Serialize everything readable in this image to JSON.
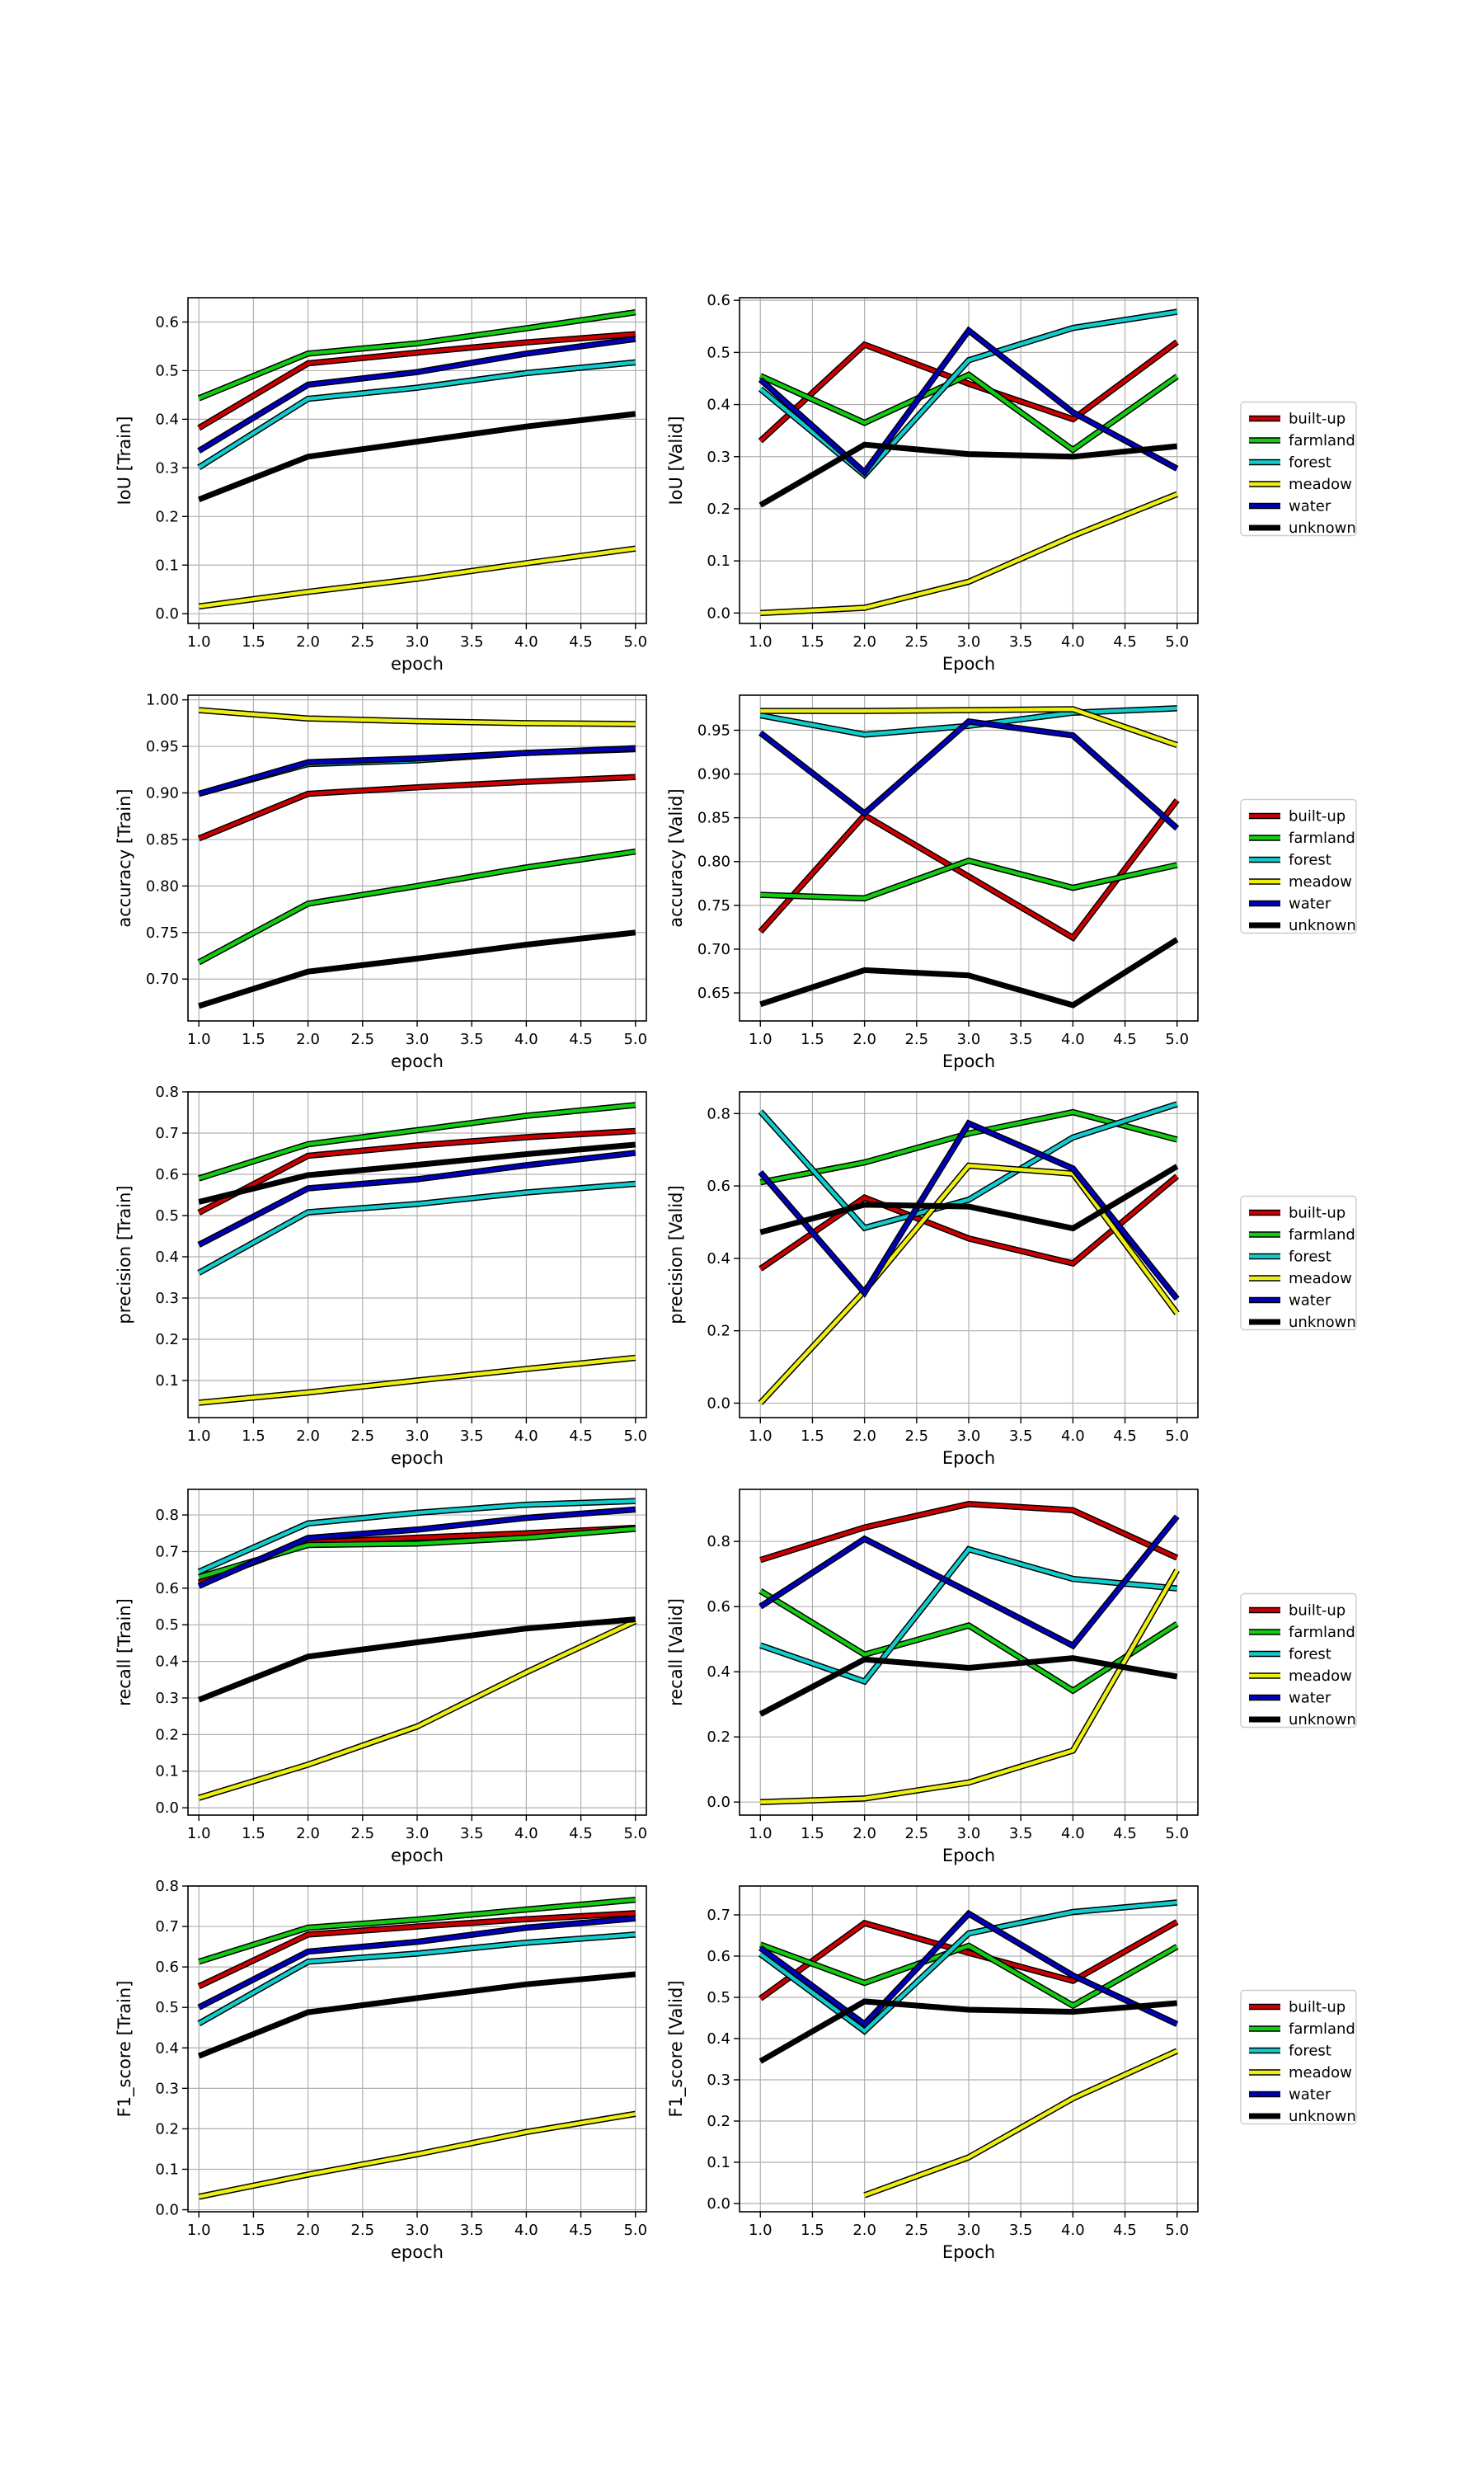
{
  "series_names": [
    "built-up",
    "farmland",
    "forest",
    "meadow",
    "water",
    "unknown"
  ],
  "series_colors": {
    "built-up": "#cc0000",
    "farmland": "#11cc11",
    "forest": "#11cccc",
    "meadow": "#eeee11",
    "water": "#0000bb",
    "unknown": "#000000"
  },
  "chart_data": [
    {
      "type": "line",
      "ylabel": "IoU [Train]",
      "xlabel": "epoch",
      "x": [
        1,
        2,
        3,
        4,
        5
      ],
      "xlim": [
        0.9,
        5.1
      ],
      "ylim": [
        -0.02,
        0.65
      ],
      "xticks": [
        1.0,
        1.5,
        2.0,
        2.5,
        3.0,
        3.5,
        4.0,
        4.5,
        5.0
      ],
      "yticks": [
        0.0,
        0.1,
        0.2,
        0.3,
        0.4,
        0.5,
        0.6
      ],
      "legend": false,
      "series": [
        {
          "name": "built-up",
          "values": [
            0.382,
            0.515,
            0.537,
            0.558,
            0.575
          ]
        },
        {
          "name": "farmland",
          "values": [
            0.443,
            0.535,
            0.556,
            0.587,
            0.62
          ]
        },
        {
          "name": "forest",
          "values": [
            0.301,
            0.442,
            0.465,
            0.495,
            0.517
          ]
        },
        {
          "name": "meadow",
          "values": [
            0.015,
            0.045,
            0.072,
            0.104,
            0.134
          ]
        },
        {
          "name": "water",
          "values": [
            0.335,
            0.471,
            0.497,
            0.535,
            0.565
          ]
        },
        {
          "name": "unknown",
          "values": [
            0.235,
            0.323,
            0.354,
            0.385,
            0.411
          ]
        }
      ]
    },
    {
      "type": "line",
      "ylabel": "IoU [Valid]",
      "xlabel": "Epoch",
      "x": [
        1,
        2,
        3,
        4,
        5
      ],
      "xlim": [
        0.8,
        5.2
      ],
      "ylim": [
        -0.02,
        0.605
      ],
      "xticks": [
        1.0,
        1.5,
        2.0,
        2.5,
        3.0,
        3.5,
        4.0,
        4.5,
        5.0
      ],
      "yticks": [
        0.0,
        0.1,
        0.2,
        0.3,
        0.4,
        0.5,
        0.6
      ],
      "legend": true,
      "series": [
        {
          "name": "built-up",
          "values": [
            0.33,
            0.515,
            0.44,
            0.372,
            0.52
          ]
        },
        {
          "name": "farmland",
          "values": [
            0.455,
            0.365,
            0.457,
            0.313,
            0.454
          ]
        },
        {
          "name": "forest",
          "values": [
            0.43,
            0.265,
            0.485,
            0.547,
            0.578
          ]
        },
        {
          "name": "meadow",
          "values": [
            0.0,
            0.01,
            0.06,
            0.148,
            0.228
          ]
        },
        {
          "name": "water",
          "values": [
            0.448,
            0.27,
            0.542,
            0.385,
            0.277
          ]
        },
        {
          "name": "unknown",
          "values": [
            0.207,
            0.323,
            0.305,
            0.3,
            0.32
          ]
        }
      ]
    },
    {
      "type": "line",
      "ylabel": "accuracy [Train]",
      "xlabel": "epoch",
      "x": [
        1,
        2,
        3,
        4,
        5
      ],
      "xlim": [
        0.9,
        5.1
      ],
      "ylim": [
        0.655,
        1.005
      ],
      "xticks": [
        1.0,
        1.5,
        2.0,
        2.5,
        3.0,
        3.5,
        4.0,
        4.5,
        5.0
      ],
      "yticks": [
        0.7,
        0.75,
        0.8,
        0.85,
        0.9,
        0.95,
        1.0
      ],
      "legend": false,
      "series": [
        {
          "name": "built-up",
          "values": [
            0.851,
            0.899,
            0.906,
            0.912,
            0.917
          ]
        },
        {
          "name": "farmland",
          "values": [
            0.718,
            0.781,
            0.8,
            0.82,
            0.837
          ]
        },
        {
          "name": "forest",
          "values": [
            0.899,
            0.931,
            0.935,
            0.943,
            0.947
          ]
        },
        {
          "name": "meadow",
          "values": [
            0.989,
            0.98,
            0.977,
            0.975,
            0.974
          ]
        },
        {
          "name": "water",
          "values": [
            0.899,
            0.933,
            0.937,
            0.943,
            0.948
          ]
        },
        {
          "name": "unknown",
          "values": [
            0.671,
            0.708,
            0.722,
            0.737,
            0.75
          ]
        }
      ]
    },
    {
      "type": "line",
      "ylabel": "accuracy [Valid]",
      "xlabel": "Epoch",
      "x": [
        1,
        2,
        3,
        4,
        5
      ],
      "xlim": [
        0.8,
        5.2
      ],
      "ylim": [
        0.618,
        0.99
      ],
      "xticks": [
        1.0,
        1.5,
        2.0,
        2.5,
        3.0,
        3.5,
        4.0,
        4.5,
        5.0
      ],
      "yticks": [
        0.65,
        0.7,
        0.75,
        0.8,
        0.85,
        0.9,
        0.95
      ],
      "legend": true,
      "series": [
        {
          "name": "built-up",
          "values": [
            0.72,
            0.853,
            0.783,
            0.713,
            0.87
          ]
        },
        {
          "name": "farmland",
          "values": [
            0.762,
            0.758,
            0.801,
            0.77,
            0.796
          ]
        },
        {
          "name": "forest",
          "values": [
            0.967,
            0.945,
            0.955,
            0.97,
            0.975
          ]
        },
        {
          "name": "meadow",
          "values": [
            0.972,
            0.972,
            0.973,
            0.974,
            0.933
          ]
        },
        {
          "name": "water",
          "values": [
            0.947,
            0.855,
            0.96,
            0.944,
            0.838
          ]
        },
        {
          "name": "unknown",
          "values": [
            0.637,
            0.676,
            0.67,
            0.636,
            0.711
          ]
        }
      ]
    },
    {
      "type": "line",
      "ylabel": "precision [Train]",
      "xlabel": "epoch",
      "x": [
        1,
        2,
        3,
        4,
        5
      ],
      "xlim": [
        0.9,
        5.1
      ],
      "ylim": [
        0.01,
        0.8
      ],
      "xticks": [
        1.0,
        1.5,
        2.0,
        2.5,
        3.0,
        3.5,
        4.0,
        4.5,
        5.0
      ],
      "yticks": [
        0.1,
        0.2,
        0.3,
        0.4,
        0.5,
        0.6,
        0.7,
        0.8
      ],
      "legend": false,
      "series": [
        {
          "name": "built-up",
          "values": [
            0.507,
            0.645,
            0.67,
            0.69,
            0.705
          ]
        },
        {
          "name": "farmland",
          "values": [
            0.59,
            0.673,
            0.707,
            0.742,
            0.768
          ]
        },
        {
          "name": "forest",
          "values": [
            0.361,
            0.508,
            0.528,
            0.556,
            0.577
          ]
        },
        {
          "name": "meadow",
          "values": [
            0.046,
            0.071,
            0.1,
            0.128,
            0.155
          ]
        },
        {
          "name": "water",
          "values": [
            0.429,
            0.566,
            0.588,
            0.622,
            0.652
          ]
        },
        {
          "name": "unknown",
          "values": [
            0.533,
            0.598,
            0.623,
            0.649,
            0.672
          ]
        }
      ]
    },
    {
      "type": "line",
      "ylabel": "precision [Valid]",
      "xlabel": "Epoch",
      "x": [
        1,
        2,
        3,
        4,
        5
      ],
      "xlim": [
        0.8,
        5.2
      ],
      "ylim": [
        -0.04,
        0.86
      ],
      "xticks": [
        1.0,
        1.5,
        2.0,
        2.5,
        3.0,
        3.5,
        4.0,
        4.5,
        5.0
      ],
      "yticks": [
        0.0,
        0.2,
        0.4,
        0.6,
        0.8
      ],
      "legend": true,
      "series": [
        {
          "name": "built-up",
          "values": [
            0.371,
            0.568,
            0.455,
            0.386,
            0.627
          ]
        },
        {
          "name": "farmland",
          "values": [
            0.61,
            0.665,
            0.745,
            0.804,
            0.728
          ]
        },
        {
          "name": "forest",
          "values": [
            0.806,
            0.484,
            0.562,
            0.734,
            0.826
          ]
        },
        {
          "name": "meadow",
          "values": [
            0.0,
            0.31,
            0.656,
            0.634,
            0.248
          ]
        },
        {
          "name": "water",
          "values": [
            0.638,
            0.305,
            0.773,
            0.648,
            0.288
          ]
        },
        {
          "name": "unknown",
          "values": [
            0.472,
            0.548,
            0.543,
            0.483,
            0.654
          ]
        }
      ]
    },
    {
      "type": "line",
      "ylabel": "recall [Train]",
      "xlabel": "epoch",
      "x": [
        1,
        2,
        3,
        4,
        5
      ],
      "xlim": [
        0.9,
        5.1
      ],
      "ylim": [
        -0.02,
        0.87
      ],
      "xticks": [
        1.0,
        1.5,
        2.0,
        2.5,
        3.0,
        3.5,
        4.0,
        4.5,
        5.0
      ],
      "yticks": [
        0.0,
        0.1,
        0.2,
        0.3,
        0.4,
        0.5,
        0.6,
        0.7,
        0.8
      ],
      "legend": false,
      "series": [
        {
          "name": "built-up",
          "values": [
            0.615,
            0.725,
            0.738,
            0.75,
            0.765
          ]
        },
        {
          "name": "farmland",
          "values": [
            0.63,
            0.718,
            0.722,
            0.738,
            0.762
          ]
        },
        {
          "name": "forest",
          "values": [
            0.645,
            0.777,
            0.806,
            0.828,
            0.838
          ]
        },
        {
          "name": "meadow",
          "values": [
            0.027,
            0.118,
            0.222,
            0.37,
            0.51
          ]
        },
        {
          "name": "water",
          "values": [
            0.606,
            0.737,
            0.76,
            0.792,
            0.815
          ]
        },
        {
          "name": "unknown",
          "values": [
            0.295,
            0.413,
            0.452,
            0.49,
            0.515
          ]
        }
      ]
    },
    {
      "type": "line",
      "ylabel": "recall [Valid]",
      "xlabel": "Epoch",
      "x": [
        1,
        2,
        3,
        4,
        5
      ],
      "xlim": [
        0.8,
        5.2
      ],
      "ylim": [
        -0.04,
        0.96
      ],
      "xticks": [
        1.0,
        1.5,
        2.0,
        2.5,
        3.0,
        3.5,
        4.0,
        4.5,
        5.0
      ],
      "yticks": [
        0.0,
        0.2,
        0.4,
        0.6,
        0.8
      ],
      "legend": true,
      "series": [
        {
          "name": "built-up",
          "values": [
            0.743,
            0.843,
            0.915,
            0.896,
            0.75
          ]
        },
        {
          "name": "farmland",
          "values": [
            0.648,
            0.453,
            0.542,
            0.342,
            0.547
          ]
        },
        {
          "name": "forest",
          "values": [
            0.481,
            0.37,
            0.776,
            0.685,
            0.656
          ]
        },
        {
          "name": "meadow",
          "values": [
            0.0,
            0.011,
            0.06,
            0.158,
            0.712
          ]
        },
        {
          "name": "water",
          "values": [
            0.6,
            0.808,
            0.645,
            0.48,
            0.877
          ]
        },
        {
          "name": "unknown",
          "values": [
            0.27,
            0.438,
            0.412,
            0.442,
            0.385
          ]
        }
      ]
    },
    {
      "type": "line",
      "ylabel": "F1_score [Train]",
      "xlabel": "epoch",
      "x": [
        1,
        2,
        3,
        4,
        5
      ],
      "xlim": [
        0.9,
        5.1
      ],
      "ylim": [
        -0.005,
        0.8
      ],
      "xticks": [
        1.0,
        1.5,
        2.0,
        2.5,
        3.0,
        3.5,
        4.0,
        4.5,
        5.0
      ],
      "yticks": [
        0.0,
        0.1,
        0.2,
        0.3,
        0.4,
        0.5,
        0.6,
        0.7,
        0.8
      ],
      "legend": false,
      "series": [
        {
          "name": "built-up",
          "values": [
            0.552,
            0.68,
            0.7,
            0.718,
            0.733
          ]
        },
        {
          "name": "farmland",
          "values": [
            0.613,
            0.697,
            0.717,
            0.742,
            0.766
          ]
        },
        {
          "name": "forest",
          "values": [
            0.46,
            0.613,
            0.633,
            0.66,
            0.68
          ]
        },
        {
          "name": "meadow",
          "values": [
            0.032,
            0.087,
            0.137,
            0.192,
            0.237
          ]
        },
        {
          "name": "water",
          "values": [
            0.5,
            0.638,
            0.662,
            0.697,
            0.72
          ]
        },
        {
          "name": "unknown",
          "values": [
            0.38,
            0.488,
            0.523,
            0.557,
            0.582
          ]
        }
      ]
    },
    {
      "type": "line",
      "ylabel": "F1_score [Valid]",
      "xlabel": "Epoch",
      "x": [
        1,
        2,
        3,
        4,
        5
      ],
      "xlim": [
        0.8,
        5.2
      ],
      "ylim": [
        -0.02,
        0.77
      ],
      "xticks": [
        1.0,
        1.5,
        2.0,
        2.5,
        3.0,
        3.5,
        4.0,
        4.5,
        5.0
      ],
      "yticks": [
        0.0,
        0.1,
        0.2,
        0.3,
        0.4,
        0.5,
        0.6,
        0.7
      ],
      "legend": true,
      "series": [
        {
          "name": "built-up",
          "values": [
            0.497,
            0.68,
            0.608,
            0.54,
            0.683
          ]
        },
        {
          "name": "farmland",
          "values": [
            0.628,
            0.535,
            0.625,
            0.48,
            0.623
          ]
        },
        {
          "name": "forest",
          "values": [
            0.605,
            0.418,
            0.655,
            0.707,
            0.73
          ]
        },
        {
          "name": "meadow",
          "values": [
            null,
            0.02,
            0.112,
            0.255,
            0.37
          ]
        },
        {
          "name": "water",
          "values": [
            0.62,
            0.435,
            0.703,
            0.553,
            0.435
          ]
        },
        {
          "name": "unknown",
          "values": [
            0.345,
            0.49,
            0.47,
            0.465,
            0.486
          ]
        }
      ]
    }
  ]
}
